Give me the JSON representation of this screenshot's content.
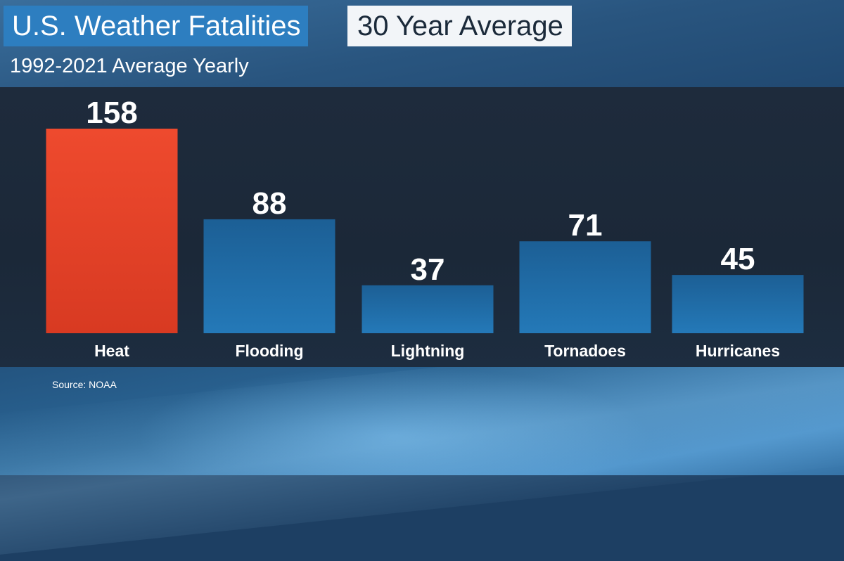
{
  "header": {
    "title": "U.S. Weather Fatalities",
    "tag": "30 Year Average",
    "subtitle": "1992-2021 Average Yearly"
  },
  "footer": {
    "source": "Source: NOAA"
  },
  "colors": {
    "highlight": "#e8442a",
    "bar": "#1f6aa3",
    "title_bg": "#2d7ec0"
  },
  "chart_data": {
    "type": "bar",
    "categories": [
      "Heat",
      "Flooding",
      "Lightning",
      "Tornadoes",
      "Hurricanes"
    ],
    "values": [
      158,
      88,
      37,
      71,
      45
    ],
    "highlight_index": 0,
    "title": "U.S. Weather Fatalities",
    "subtitle": "1992-2021 Average Yearly",
    "xlabel": "",
    "ylabel": "",
    "ylim": [
      0,
      158
    ],
    "grid": false,
    "legend": "none"
  }
}
